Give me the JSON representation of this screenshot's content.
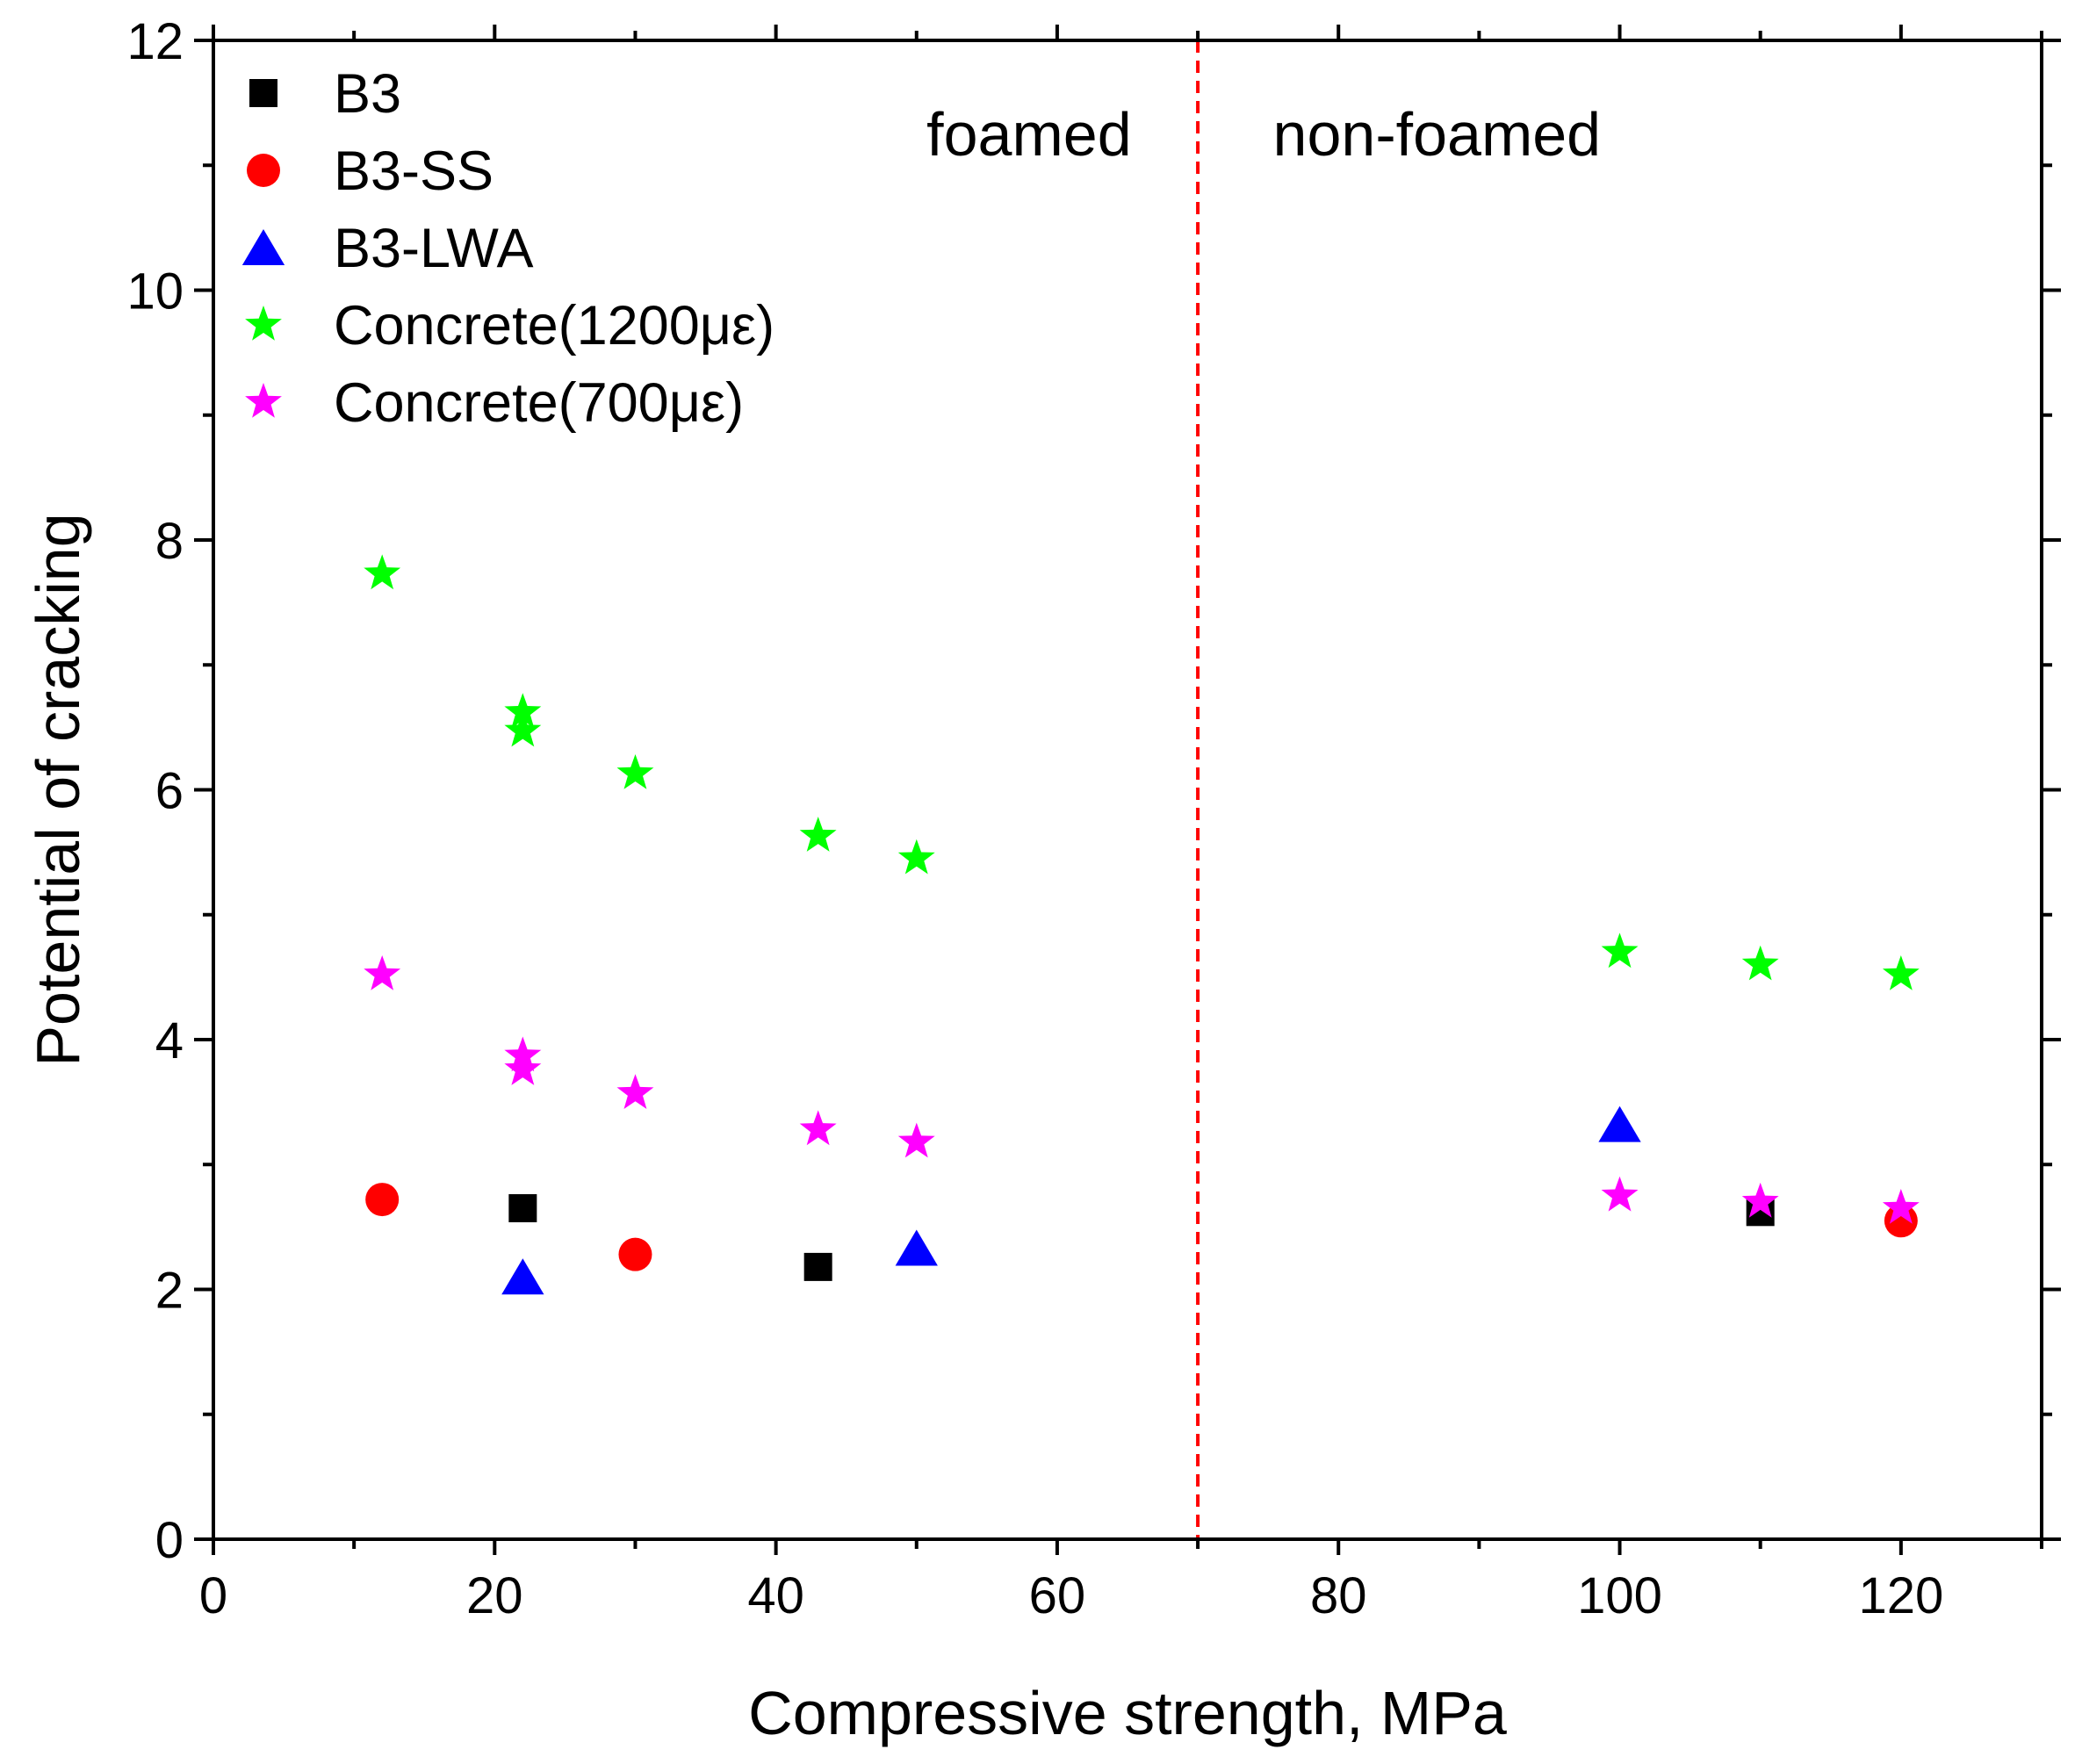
{
  "chart_data": {
    "type": "scatter",
    "title": "",
    "xlabel": "Compressive strength, MPa",
    "ylabel": "Potential of cracking",
    "xlim": [
      0,
      130
    ],
    "ylim": [
      0,
      12
    ],
    "x_ticks": [
      0,
      20,
      40,
      60,
      80,
      100,
      120
    ],
    "y_ticks": [
      0,
      2,
      4,
      6,
      8,
      10,
      12
    ],
    "grid": false,
    "legend_position": "top-left",
    "series": [
      {
        "name": "B3",
        "marker": "square",
        "color": "#000000",
        "points": [
          [
            22,
            2.65
          ],
          [
            43,
            2.18
          ],
          [
            110,
            2.62
          ]
        ]
      },
      {
        "name": "B3-SS",
        "marker": "circle",
        "color": "#ff0000",
        "points": [
          [
            12,
            2.72
          ],
          [
            30,
            2.28
          ],
          [
            120,
            2.55
          ]
        ]
      },
      {
        "name": "B3-LWA",
        "marker": "triangle",
        "color": "#0000ff",
        "points": [
          [
            22,
            2.1
          ],
          [
            50,
            2.33
          ],
          [
            100,
            3.32
          ]
        ]
      },
      {
        "name": "Concrete(1200με)",
        "marker": "star",
        "color": "#00ff00",
        "points": [
          [
            12,
            7.73
          ],
          [
            22,
            6.62
          ],
          [
            22,
            6.47
          ],
          [
            30,
            6.13
          ],
          [
            43,
            5.63
          ],
          [
            50,
            5.45
          ],
          [
            100,
            4.7
          ],
          [
            110,
            4.6
          ],
          [
            120,
            4.52
          ]
        ]
      },
      {
        "name": "Concrete(700με)",
        "marker": "star",
        "color": "#ff00ff",
        "points": [
          [
            12,
            4.52
          ],
          [
            22,
            3.87
          ],
          [
            22,
            3.76
          ],
          [
            30,
            3.57
          ],
          [
            43,
            3.28
          ],
          [
            50,
            3.18
          ],
          [
            100,
            2.75
          ],
          [
            110,
            2.7
          ],
          [
            120,
            2.65
          ]
        ]
      }
    ],
    "annotations": [
      {
        "text": "foamed",
        "x": 58
      },
      {
        "text": "non-foamed",
        "x": 87
      }
    ],
    "reference_line": {
      "x": 70,
      "style": "dashed",
      "color": "#ff0000"
    }
  }
}
